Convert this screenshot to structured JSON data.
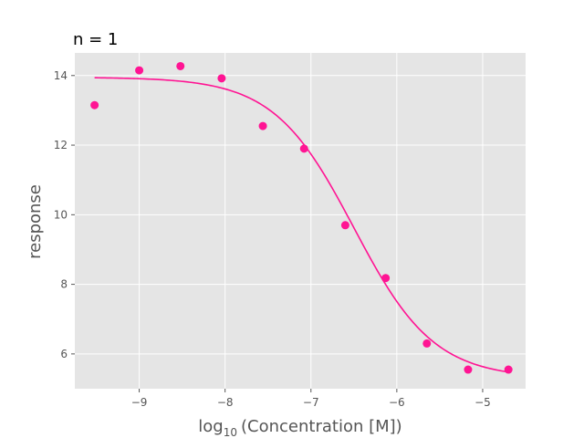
{
  "chart_data": {
    "type": "scatter",
    "title": "n = 1",
    "xlabel_main": "log",
    "xlabel_sub": "10",
    "xlabel_rest": "(Concentration [M])",
    "ylabel": "response",
    "xlim": [
      -9.75,
      -4.5
    ],
    "ylim": [
      5.0,
      14.65
    ],
    "xticks": [
      -9,
      -8,
      -7,
      -6,
      -5
    ],
    "xtick_labels": [
      "−9",
      "−8",
      "−7",
      "−6",
      "−5"
    ],
    "yticks": [
      6,
      8,
      10,
      12,
      14
    ],
    "ytick_labels": [
      "6",
      "8",
      "10",
      "12",
      "14"
    ],
    "grid": true,
    "colors": {
      "marker": "#ff1493",
      "curve": "#ff1493",
      "background": "#e5e5e5",
      "grid": "#ffffff"
    },
    "series": [
      {
        "points": [
          {
            "x": -9.52,
            "y": 13.15
          },
          {
            "x": -9.0,
            "y": 14.15
          },
          {
            "x": -8.52,
            "y": 14.27
          },
          {
            "x": -8.04,
            "y": 13.92
          },
          {
            "x": -7.56,
            "y": 12.55
          },
          {
            "x": -7.08,
            "y": 11.9
          },
          {
            "x": -6.6,
            "y": 9.7
          },
          {
            "x": -6.13,
            "y": 8.18
          },
          {
            "x": -5.65,
            "y": 6.3
          },
          {
            "x": -5.17,
            "y": 5.55
          },
          {
            "x": -4.7,
            "y": 5.55
          }
        ]
      }
    ],
    "fit": {
      "model": "4PL",
      "top": 13.95,
      "bottom": 5.3,
      "log_ec50": -6.5,
      "hill": -0.93,
      "x_range": [
        -9.52,
        -4.7
      ]
    }
  }
}
